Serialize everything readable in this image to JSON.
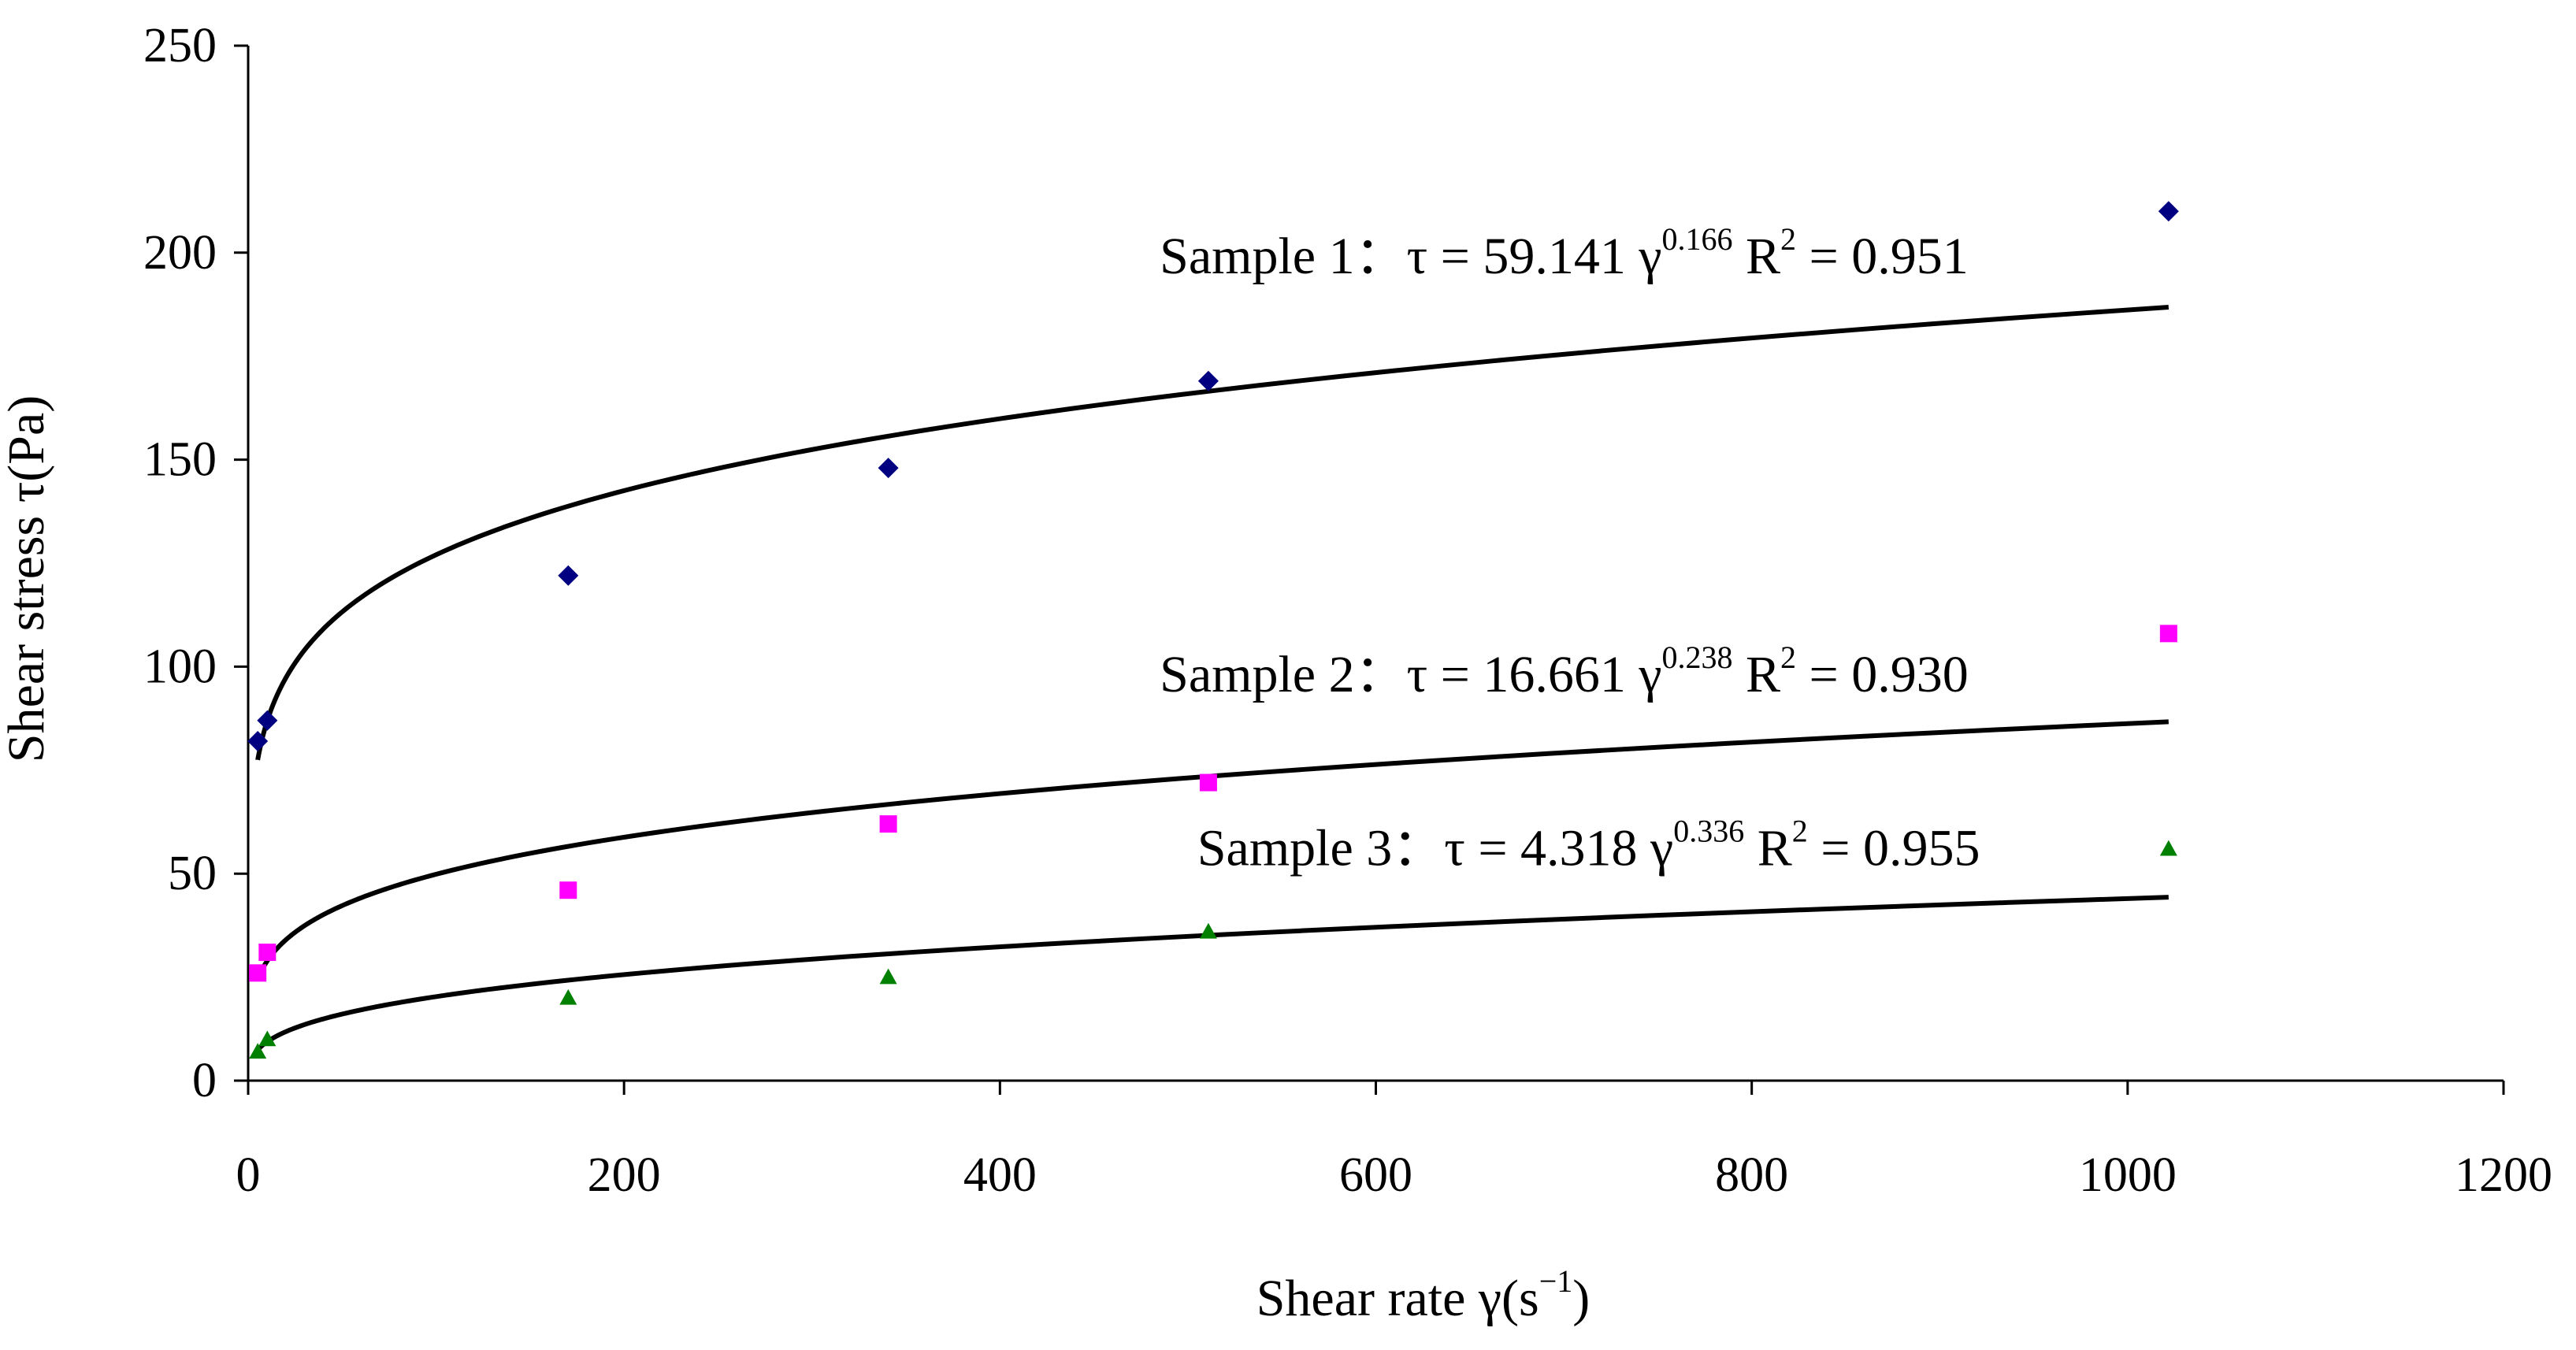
{
  "chart_data": {
    "type": "scatter",
    "title": "",
    "xlabel": "Shear rate γ(s⁻¹)",
    "xlabel_main": "Shear rate γ(s",
    "xlabel_sup": "−1",
    "xlabel_close": ")",
    "ylabel": "Shear stress τ(Pa)",
    "xlim": [
      0,
      1200
    ],
    "ylim": [
      0,
      250
    ],
    "x_ticks": [
      0,
      200,
      400,
      600,
      800,
      1000,
      1200
    ],
    "y_ticks": [
      0,
      50,
      100,
      150,
      200,
      250
    ],
    "x_tick_labels": [
      "0",
      "200",
      "400",
      "600",
      "800",
      "1000",
      "1200"
    ],
    "y_tick_labels": [
      "0",
      "50",
      "100",
      "150",
      "200",
      "250"
    ],
    "grid": false,
    "series": [
      {
        "name": "Sample 1",
        "marker": "diamond",
        "color": "#000080",
        "x": [
          5.1,
          10.2,
          170.3,
          340.6,
          510.9,
          1021.8
        ],
        "y": [
          82,
          87,
          122,
          148,
          169,
          210
        ],
        "fit": {
          "a": 59.141,
          "b": 0.166,
          "r2": 0.951,
          "x_range": [
            5.1,
            1021.8
          ]
        },
        "annotation": {
          "prefix": "Sample 1：τ = 59.141 γ",
          "exponent": "0.166",
          "r_label": "R",
          "r_sup": "2",
          "r_value": " = 0.951"
        }
      },
      {
        "name": "Sample 2",
        "marker": "square",
        "color": "#FF00FF",
        "x": [
          5.1,
          10.2,
          170.3,
          340.6,
          510.9,
          1021.8
        ],
        "y": [
          26,
          31,
          46,
          62,
          72,
          108
        ],
        "fit": {
          "a": 16.661,
          "b": 0.238,
          "r2": 0.93,
          "x_range": [
            5.1,
            1021.8
          ]
        },
        "annotation": {
          "prefix": "Sample 2：τ = 16.661 γ",
          "exponent": "0.238",
          "r_label": "R",
          "r_sup": "2",
          "r_value": " = 0.930"
        }
      },
      {
        "name": "Sample 3",
        "marker": "triangle",
        "color": "#008000",
        "x": [
          5.1,
          10.2,
          170.3,
          340.6,
          510.9,
          1021.8
        ],
        "y": [
          7,
          10,
          20,
          25,
          36,
          56
        ],
        "fit": {
          "a": 4.318,
          "b": 0.336,
          "r2": 0.955,
          "x_range": [
            5.1,
            1021.8
          ]
        },
        "annotation": {
          "prefix": "Sample 3：τ = 4.318 γ",
          "exponent": "0.336",
          "r_label": "R",
          "r_sup": "2",
          "r_value": " = 0.955"
        }
      }
    ]
  }
}
